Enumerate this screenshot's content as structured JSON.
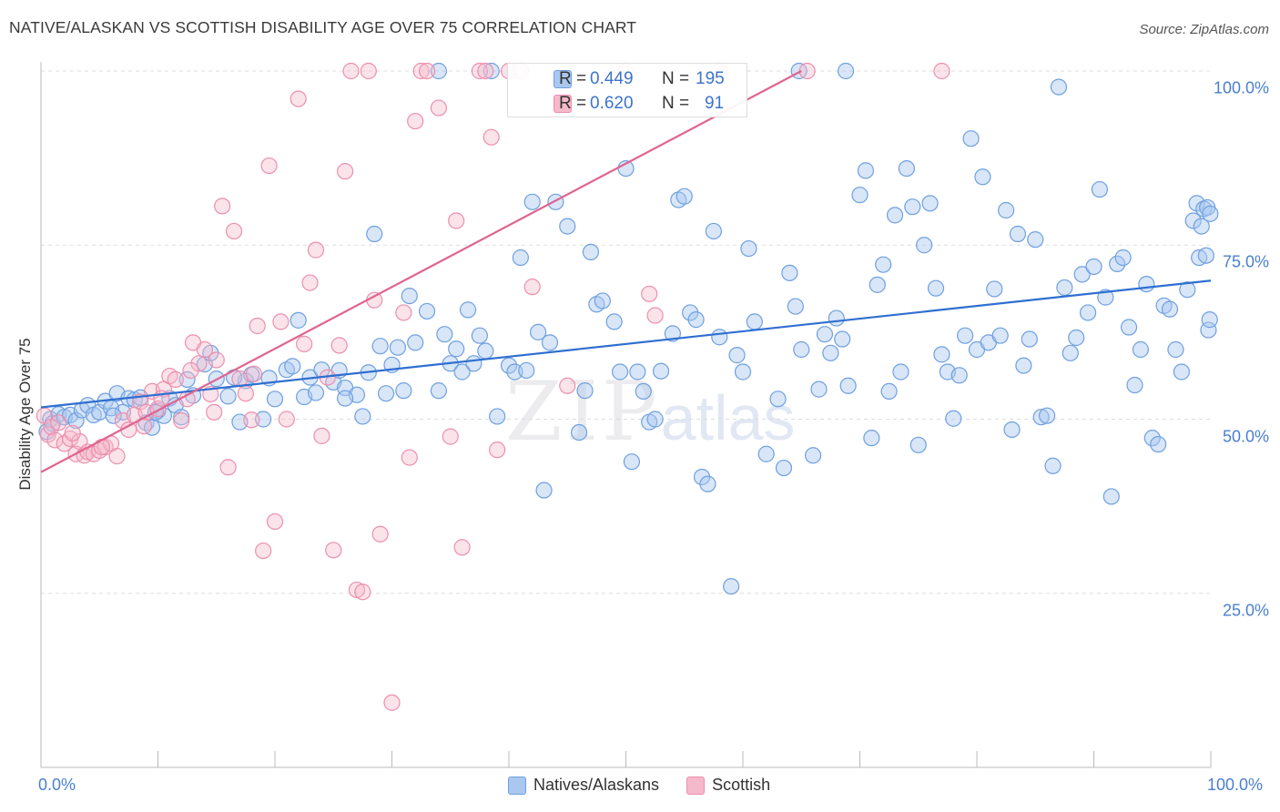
{
  "title": "NATIVE/ALASKAN VS SCOTTISH DISABILITY AGE OVER 75 CORRELATION CHART",
  "source": "Source: ZipAtlas.com",
  "watermark": {
    "main": "ZIP",
    "sub": "atlas"
  },
  "colors": {
    "blue_fill": "#a9c7ef",
    "blue_stroke": "#6fa0e0",
    "blue_line": "#2f6fd0",
    "pink_fill": "#f6b8cb",
    "pink_stroke": "#ec8fae",
    "pink_line": "#e0648f",
    "tick_text": "#4a7fd0",
    "grid": "#dddddd"
  },
  "stats": {
    "r_label": "R =",
    "n_label": "N =",
    "rows": [
      {
        "series": "Natives/Alaskans",
        "r": "0.449",
        "n": "195"
      },
      {
        "series": "Scottish",
        "r": "0.620",
        "n": "91"
      }
    ]
  },
  "legend": [
    "Natives/Alaskans",
    "Scottish"
  ],
  "chart_data": {
    "type": "scatter",
    "title": "NATIVE/ALASKAN VS SCOTTISH DISABILITY AGE OVER 75 CORRELATION CHART",
    "xlabel": "",
    "ylabel": "Disability Age Over 75",
    "xlim": [
      0,
      100
    ],
    "ylim": [
      0,
      100
    ],
    "x_tick_labels": [
      "0.0%",
      "100.0%"
    ],
    "y_ticks": [
      25,
      50,
      75,
      100
    ],
    "y_tick_labels": [
      "25.0%",
      "50.0%",
      "75.0%",
      "100.0%"
    ],
    "grid": true,
    "legend_position": "bottom-center",
    "series": [
      {
        "name": "Natives/Alaskans",
        "trendline": {
          "x": [
            0,
            100
          ],
          "y": [
            51.7,
            69.9
          ]
        },
        "points": [
          [
            0.5,
            48.2
          ],
          [
            0.8,
            50.0
          ],
          [
            1.0,
            49.4
          ],
          [
            1.5,
            50.7
          ],
          [
            2.0,
            50.3
          ],
          [
            2.5,
            50.6
          ],
          [
            3.0,
            49.8
          ],
          [
            3.5,
            51.3
          ],
          [
            4.0,
            52.0
          ],
          [
            4.5,
            50.6
          ],
          [
            5.0,
            51.0
          ],
          [
            5.5,
            52.6
          ],
          [
            6.0,
            51.6
          ],
          [
            6.5,
            53.7
          ],
          [
            7.0,
            51.0
          ],
          [
            7.5,
            53.0
          ],
          [
            8.0,
            52.8
          ],
          [
            8.5,
            53.1
          ],
          [
            9.0,
            49.5
          ],
          [
            9.5,
            48.8
          ],
          [
            10.0,
            51.2
          ],
          [
            10.5,
            50.5
          ],
          [
            11.0,
            53.0
          ],
          [
            11.5,
            52.0
          ],
          [
            12.0,
            50.3
          ],
          [
            12.5,
            55.7
          ],
          [
            13.0,
            53.4
          ],
          [
            14.0,
            57.9
          ],
          [
            14.5,
            59.5
          ],
          [
            15.0,
            55.8
          ],
          [
            16.0,
            53.3
          ],
          [
            17.0,
            49.6
          ],
          [
            17.5,
            55.5
          ],
          [
            18.0,
            56.4
          ],
          [
            19.0,
            50.0
          ],
          [
            19.5,
            55.9
          ],
          [
            20.0,
            52.9
          ],
          [
            21.0,
            57.1
          ],
          [
            21.5,
            57.6
          ],
          [
            22.0,
            64.2
          ],
          [
            22.5,
            53.2
          ],
          [
            23.0,
            56.0
          ],
          [
            24.0,
            57.1
          ],
          [
            25.0,
            55.3
          ],
          [
            25.5,
            57.0
          ],
          [
            26.0,
            54.5
          ],
          [
            27.0,
            53.5
          ],
          [
            27.5,
            50.4
          ],
          [
            28.0,
            56.7
          ],
          [
            28.5,
            76.6
          ],
          [
            29.0,
            60.5
          ],
          [
            29.5,
            53.7
          ],
          [
            30.0,
            57.8
          ],
          [
            30.5,
            60.3
          ],
          [
            31.0,
            54.1
          ],
          [
            31.5,
            67.7
          ],
          [
            32.0,
            61.0
          ],
          [
            33.0,
            65.5
          ],
          [
            34.0,
            54.1
          ],
          [
            34.5,
            62.2
          ],
          [
            35.0,
            58.0
          ],
          [
            35.5,
            60.1
          ],
          [
            36.0,
            56.8
          ],
          [
            36.5,
            65.7
          ],
          [
            37.0,
            58.0
          ],
          [
            37.5,
            62.0
          ],
          [
            38.0,
            59.8
          ],
          [
            39.0,
            50.4
          ],
          [
            40.0,
            57.7
          ],
          [
            40.5,
            56.8
          ],
          [
            41.0,
            73.2
          ],
          [
            41.5,
            57.0
          ],
          [
            42.5,
            62.5
          ],
          [
            43.0,
            39.8
          ],
          [
            43.5,
            61.0
          ],
          [
            44.0,
            81.2
          ],
          [
            45.0,
            77.7
          ],
          [
            46.0,
            48.1
          ],
          [
            46.5,
            54.1
          ],
          [
            47.0,
            74.0
          ],
          [
            47.5,
            66.5
          ],
          [
            48.0,
            67.0
          ],
          [
            49.0,
            64.0
          ],
          [
            49.5,
            56.8
          ],
          [
            50.0,
            86.0
          ],
          [
            50.5,
            43.9
          ],
          [
            51.0,
            56.8
          ],
          [
            51.5,
            54.0
          ],
          [
            52.0,
            49.6
          ],
          [
            52.5,
            50.0
          ],
          [
            53.0,
            56.9
          ],
          [
            54.0,
            62.3
          ],
          [
            54.5,
            81.5
          ],
          [
            55.0,
            82.0
          ],
          [
            55.5,
            65.3
          ],
          [
            56.0,
            64.3
          ],
          [
            56.5,
            41.7
          ],
          [
            57.0,
            40.7
          ],
          [
            57.5,
            77.0
          ],
          [
            58.0,
            61.8
          ],
          [
            59.0,
            26.0
          ],
          [
            59.5,
            59.2
          ],
          [
            60.0,
            56.8
          ],
          [
            60.5,
            74.5
          ],
          [
            61.0,
            64.0
          ],
          [
            62.0,
            45.0
          ],
          [
            63.0,
            52.9
          ],
          [
            63.5,
            43.0
          ],
          [
            64.0,
            71.0
          ],
          [
            64.5,
            66.2
          ],
          [
            65.0,
            60.0
          ],
          [
            66.0,
            44.8
          ],
          [
            66.5,
            54.3
          ],
          [
            67.0,
            62.2
          ],
          [
            67.5,
            59.5
          ],
          [
            68.0,
            64.5
          ],
          [
            68.5,
            61.5
          ],
          [
            69.0,
            54.8
          ],
          [
            70.0,
            82.2
          ],
          [
            70.5,
            85.7
          ],
          [
            71.0,
            47.3
          ],
          [
            71.5,
            69.3
          ],
          [
            72.0,
            72.2
          ],
          [
            72.5,
            54.0
          ],
          [
            73.0,
            79.3
          ],
          [
            73.5,
            56.8
          ],
          [
            74.0,
            86.0
          ],
          [
            74.5,
            80.5
          ],
          [
            75.0,
            46.3
          ],
          [
            75.5,
            75.0
          ],
          [
            76.0,
            81.0
          ],
          [
            76.5,
            68.8
          ],
          [
            77.0,
            59.3
          ],
          [
            77.5,
            56.8
          ],
          [
            78.0,
            50.1
          ],
          [
            78.5,
            56.3
          ],
          [
            79.0,
            62.0
          ],
          [
            79.5,
            90.3
          ],
          [
            80.0,
            60.0
          ],
          [
            80.5,
            84.8
          ],
          [
            81.0,
            61.0
          ],
          [
            81.5,
            68.7
          ],
          [
            82.0,
            62.0
          ],
          [
            82.5,
            80.0
          ],
          [
            83.0,
            48.5
          ],
          [
            83.5,
            76.6
          ],
          [
            84.0,
            57.7
          ],
          [
            84.5,
            61.5
          ],
          [
            85.0,
            75.8
          ],
          [
            85.5,
            50.3
          ],
          [
            86.0,
            50.5
          ],
          [
            86.5,
            43.3
          ],
          [
            87.0,
            97.7
          ],
          [
            87.5,
            68.9
          ],
          [
            88.0,
            59.5
          ],
          [
            88.5,
            61.7
          ],
          [
            89.0,
            70.8
          ],
          [
            89.5,
            65.3
          ],
          [
            90.0,
            71.9
          ],
          [
            90.5,
            83.0
          ],
          [
            91.0,
            67.5
          ],
          [
            91.5,
            38.9
          ],
          [
            92.0,
            72.3
          ],
          [
            92.5,
            73.2
          ],
          [
            93.0,
            63.2
          ],
          [
            93.5,
            54.9
          ],
          [
            94.0,
            60.0
          ],
          [
            94.5,
            69.4
          ],
          [
            95.0,
            47.3
          ],
          [
            95.5,
            46.4
          ],
          [
            96.0,
            66.3
          ],
          [
            96.5,
            65.8
          ],
          [
            97.0,
            60.0
          ],
          [
            97.5,
            56.8
          ],
          [
            98.0,
            68.6
          ],
          [
            98.5,
            78.5
          ],
          [
            98.8,
            81.0
          ],
          [
            99.0,
            73.2
          ],
          [
            99.2,
            77.7
          ],
          [
            99.4,
            80.2
          ],
          [
            99.6,
            73.5
          ],
          [
            99.7,
            80.4
          ],
          [
            99.8,
            62.8
          ],
          [
            99.9,
            64.3
          ],
          [
            99.95,
            79.5
          ],
          [
            68.8,
            100.0
          ],
          [
            42.0,
            81.2
          ],
          [
            38.5,
            100.0
          ],
          [
            64.8,
            100.0
          ],
          [
            34.0,
            100.0
          ],
          [
            26.0,
            53.0
          ],
          [
            9.8,
            51.0
          ],
          [
            6.2,
            50.5
          ],
          [
            16.5,
            56.0
          ],
          [
            23.5,
            53.8
          ]
        ]
      },
      {
        "name": "Scottish",
        "trendline": {
          "x": [
            0,
            65
          ],
          "y": [
            42.4,
            100
          ]
        },
        "points": [
          [
            0.3,
            50.5
          ],
          [
            0.6,
            47.8
          ],
          [
            0.9,
            48.9
          ],
          [
            1.2,
            47.0
          ],
          [
            1.5,
            49.5
          ],
          [
            2.0,
            46.5
          ],
          [
            2.5,
            47.2
          ],
          [
            3.0,
            45.0
          ],
          [
            3.3,
            46.8
          ],
          [
            3.7,
            44.8
          ],
          [
            4.0,
            45.3
          ],
          [
            4.5,
            45.0
          ],
          [
            5.0,
            45.5
          ],
          [
            5.5,
            46.0
          ],
          [
            6.0,
            46.5
          ],
          [
            6.5,
            44.7
          ],
          [
            7.0,
            49.8
          ],
          [
            7.5,
            48.5
          ],
          [
            8.0,
            50.6
          ],
          [
            8.5,
            52.5
          ],
          [
            9.0,
            51.0
          ],
          [
            9.5,
            54.0
          ],
          [
            10.0,
            51.5
          ],
          [
            10.5,
            54.3
          ],
          [
            11.0,
            56.2
          ],
          [
            11.5,
            55.7
          ],
          [
            12.0,
            49.8
          ],
          [
            12.5,
            52.9
          ],
          [
            13.0,
            61.0
          ],
          [
            13.5,
            58.0
          ],
          [
            14.0,
            60.0
          ],
          [
            14.5,
            53.6
          ],
          [
            15.0,
            58.5
          ],
          [
            15.5,
            80.6
          ],
          [
            16.0,
            43.1
          ],
          [
            16.5,
            77.0
          ],
          [
            17.0,
            55.8
          ],
          [
            17.5,
            53.7
          ],
          [
            18.0,
            49.9
          ],
          [
            18.5,
            63.4
          ],
          [
            19.0,
            31.1
          ],
          [
            19.5,
            86.4
          ],
          [
            20.0,
            35.3
          ],
          [
            21.0,
            50.0
          ],
          [
            22.0,
            96.0
          ],
          [
            22.5,
            60.8
          ],
          [
            23.0,
            69.6
          ],
          [
            23.5,
            74.3
          ],
          [
            24.0,
            47.6
          ],
          [
            25.0,
            31.2
          ],
          [
            25.5,
            60.6
          ],
          [
            26.0,
            85.6
          ],
          [
            26.5,
            100.0
          ],
          [
            27.0,
            25.5
          ],
          [
            27.5,
            25.2
          ],
          [
            28.0,
            100.0
          ],
          [
            28.5,
            67.1
          ],
          [
            29.0,
            33.5
          ],
          [
            30.0,
            9.3
          ],
          [
            31.0,
            65.3
          ],
          [
            31.5,
            44.5
          ],
          [
            32.0,
            92.8
          ],
          [
            32.5,
            100.0
          ],
          [
            33.0,
            100.0
          ],
          [
            34.0,
            94.7
          ],
          [
            35.0,
            47.5
          ],
          [
            35.5,
            78.5
          ],
          [
            36.0,
            31.6
          ],
          [
            37.5,
            100.0
          ],
          [
            38.0,
            100.0
          ],
          [
            38.5,
            90.5
          ],
          [
            39.0,
            45.6
          ],
          [
            40.0,
            100.0
          ],
          [
            41.0,
            100.0
          ],
          [
            42.0,
            69.0
          ],
          [
            45.0,
            54.8
          ],
          [
            50.0,
            100.0
          ],
          [
            52.0,
            68.0
          ],
          [
            52.5,
            64.9
          ],
          [
            58.0,
            100.0
          ],
          [
            65.5,
            100.0
          ],
          [
            77.0,
            100.0
          ],
          [
            8.8,
            49.0
          ],
          [
            12.8,
            57.0
          ],
          [
            14.8,
            51.0
          ],
          [
            18.2,
            56.5
          ],
          [
            2.7,
            48.0
          ],
          [
            5.2,
            46.0
          ],
          [
            10.3,
            53.0
          ],
          [
            20.5,
            64.0
          ],
          [
            24.5,
            56.0
          ]
        ]
      }
    ]
  }
}
